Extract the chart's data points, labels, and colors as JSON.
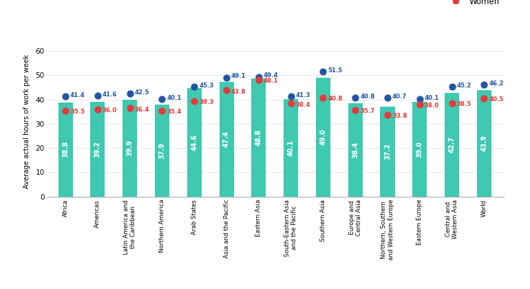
{
  "categories": [
    "Africa",
    "Americas",
    "Latin America and\nthe Caribbean",
    "Northern America",
    "Arab States",
    "Asia and the Pacific",
    "Eastern Asia",
    "South-Eastern Asia\nand the Pacific",
    "Southern Asia",
    "Europe and\nCentral Asia",
    "Northern, Southern\nand Western Europe",
    "Eastern Europe",
    "Central and\nWestern Asia",
    "World"
  ],
  "total": [
    38.8,
    39.2,
    39.9,
    37.9,
    44.6,
    47.4,
    48.8,
    40.1,
    49.0,
    38.4,
    37.2,
    39.0,
    42.7,
    43.9
  ],
  "men": [
    41.4,
    41.6,
    42.5,
    40.1,
    45.3,
    49.1,
    49.4,
    41.3,
    51.5,
    40.8,
    40.7,
    40.1,
    45.2,
    46.2
  ],
  "women": [
    35.5,
    36.0,
    36.4,
    35.4,
    39.3,
    43.8,
    48.1,
    38.4,
    40.8,
    35.7,
    33.8,
    38.0,
    38.5,
    40.5
  ],
  "bar_color": "#3EC9B0",
  "men_color": "#2255A4",
  "women_color": "#E63939",
  "ylabel": "Average actual hours of work per week",
  "ylim": [
    0,
    62
  ],
  "yticks": [
    0,
    10,
    20,
    30,
    40,
    50,
    60
  ],
  "bar_width": 0.45,
  "bar_value_fontsize": 7.0,
  "dot_size": 55,
  "dot_value_fontsize": 6.2,
  "legend_fontsize": 8.5
}
